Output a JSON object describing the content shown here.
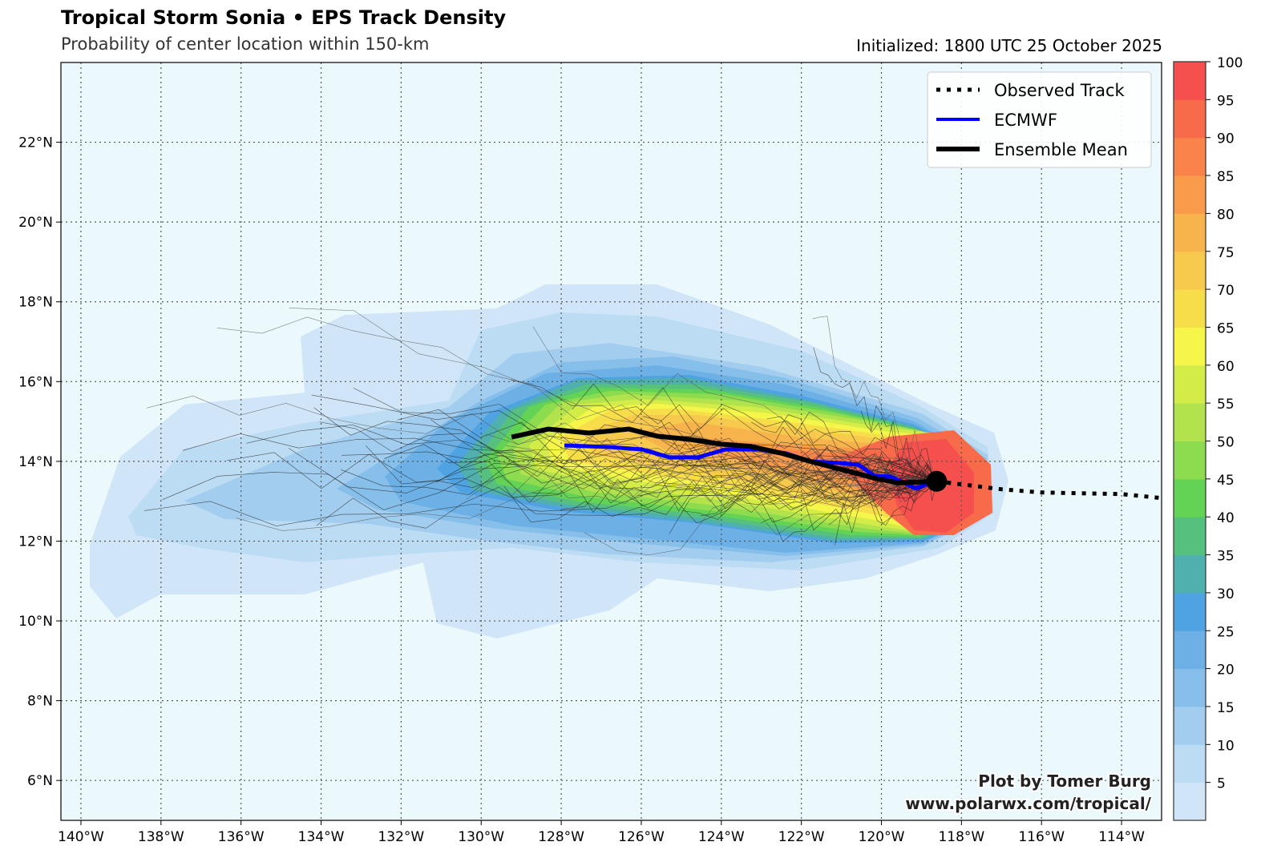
{
  "header": {
    "title": "Tropical Storm Sonia • EPS Track Density",
    "subtitle": "Probability of center location within 150-km",
    "initialized": "Initialized: 1800 UTC 25 October 2025"
  },
  "map": {
    "lon_range": [
      -140.5,
      -113
    ],
    "lat_range": [
      5,
      24
    ],
    "lon_ticks": [
      -140,
      -138,
      -136,
      -134,
      -132,
      -130,
      -128,
      -126,
      -124,
      -122,
      -120,
      -118,
      -116,
      -114
    ],
    "lon_tick_labels": [
      "140°W",
      "138°W",
      "136°W",
      "134°W",
      "132°W",
      "130°W",
      "128°W",
      "126°W",
      "124°W",
      "122°W",
      "120°W",
      "118°W",
      "116°W",
      "114°W"
    ],
    "lat_ticks": [
      6,
      8,
      10,
      12,
      14,
      16,
      18,
      20,
      22
    ],
    "lat_tick_labels": [
      "6°N",
      "8°N",
      "10°N",
      "12°N",
      "14°N",
      "16°N",
      "18°N",
      "20°N",
      "22°N"
    ],
    "background_color": "#ecf9fc",
    "current_position": {
      "lon": -118.62,
      "lat": 13.5
    }
  },
  "legend": {
    "items": [
      {
        "label": "Observed Track",
        "color": "#000000",
        "style": "dotted"
      },
      {
        "label": "ECMWF",
        "color": "#0000ff",
        "style": "solid"
      },
      {
        "label": "Ensemble Mean",
        "color": "#000000",
        "style": "solid"
      }
    ]
  },
  "tracks": {
    "observed": [
      [
        -118.62,
        13.5
      ],
      [
        -117,
        13.3
      ],
      [
        -116,
        13.22
      ],
      [
        -115,
        13.2
      ],
      [
        -114,
        13.18
      ],
      [
        -113,
        13.08
      ]
    ],
    "ensemble_mean": [
      [
        -129.24,
        14.61
      ],
      [
        -128.32,
        14.81
      ],
      [
        -127.31,
        14.71
      ],
      [
        -126.31,
        14.81
      ],
      [
        -125.59,
        14.63
      ],
      [
        -124.79,
        14.55
      ],
      [
        -123.99,
        14.43
      ],
      [
        -123.29,
        14.38
      ],
      [
        -122.48,
        14.2
      ],
      [
        -121.78,
        14.0
      ],
      [
        -120.78,
        13.74
      ],
      [
        -120.18,
        13.58
      ],
      [
        -119.58,
        13.46
      ],
      [
        -118.62,
        13.5
      ]
    ],
    "ecmwf": [
      [
        -127.92,
        14.4
      ],
      [
        -126.79,
        14.36
      ],
      [
        -125.99,
        14.3
      ],
      [
        -125.29,
        14.1
      ],
      [
        -124.59,
        14.1
      ],
      [
        -123.89,
        14.3
      ],
      [
        -123.09,
        14.3
      ],
      [
        -122.38,
        14.2
      ],
      [
        -121.78,
        14.0
      ],
      [
        -121.08,
        13.96
      ],
      [
        -120.58,
        13.92
      ],
      [
        -120.18,
        13.64
      ],
      [
        -119.78,
        13.62
      ],
      [
        -119.14,
        13.32
      ],
      [
        -118.78,
        13.46
      ]
    ]
  },
  "colorbar": {
    "levels": [
      0,
      5,
      10,
      15,
      20,
      25,
      30,
      35,
      40,
      45,
      50,
      55,
      60,
      65,
      70,
      75,
      80,
      85,
      90,
      95,
      100
    ],
    "tick_labels": [
      "5",
      "10",
      "15",
      "20",
      "25",
      "30",
      "35",
      "40",
      "45",
      "50",
      "55",
      "60",
      "65",
      "70",
      "75",
      "80",
      "85",
      "90",
      "95",
      "100"
    ],
    "colors": [
      "#d0e6f8",
      "#bcdcf3",
      "#a3cdef",
      "#87bfeb",
      "#6cb0e6",
      "#50a3e2",
      "#4fb0ae",
      "#56c07e",
      "#62d354",
      "#8ddc50",
      "#b2e34c",
      "#d4ec48",
      "#f6f64a",
      "#f7dd4a",
      "#f7c94c",
      "#f8b44c",
      "#f99b4b",
      "#f9834a",
      "#f86b4a",
      "#f5504d"
    ]
  },
  "credit": {
    "line1": "Plot by Tomer Burg",
    "line2": "www.polarwx.com/tropical/"
  }
}
